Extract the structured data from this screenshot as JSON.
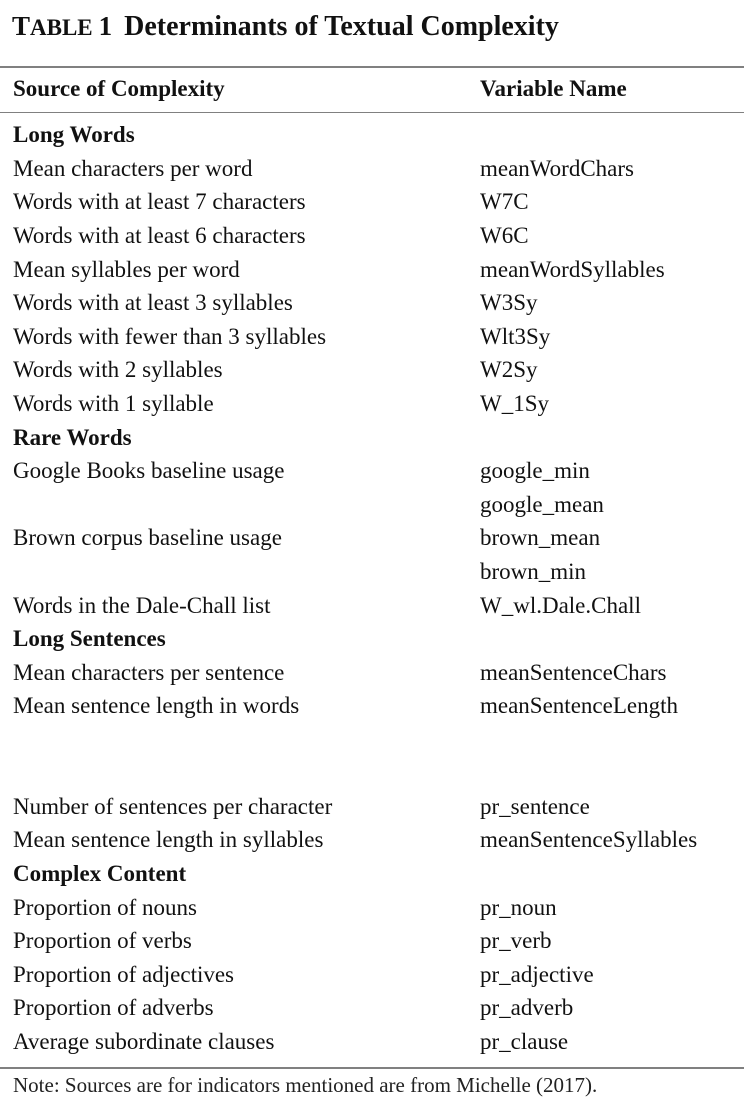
{
  "table": {
    "label_first_letter": "T",
    "label_rest": "ABLE",
    "number": "1",
    "title": "Determinants of Textual Complexity",
    "headers": [
      "Source of Complexity",
      "Variable Name"
    ],
    "rows": [
      {
        "type": "section",
        "source": "Long Words",
        "variable": ""
      },
      {
        "type": "data",
        "source": "Mean characters per word",
        "variable": "meanWordChars"
      },
      {
        "type": "data",
        "source": "Words with at least 7 characters",
        "variable": "W7C"
      },
      {
        "type": "data",
        "source": "Words with at least 6 characters",
        "variable": "W6C"
      },
      {
        "type": "data",
        "source": "Mean syllables per word",
        "variable": "meanWordSyllables"
      },
      {
        "type": "data",
        "source": "Words with at least 3 syllables",
        "variable": "W3Sy"
      },
      {
        "type": "data",
        "source": "Words with fewer than 3 syllables",
        "variable": "Wlt3Sy"
      },
      {
        "type": "data",
        "source": "Words with 2 syllables",
        "variable": "W2Sy"
      },
      {
        "type": "data",
        "source": "Words with 1 syllable",
        "variable": "W_1Sy"
      },
      {
        "type": "section",
        "source": "Rare Words",
        "variable": ""
      },
      {
        "type": "data",
        "source": "Google Books baseline usage",
        "variable": "google_min"
      },
      {
        "type": "data",
        "source": "",
        "variable": "google_mean"
      },
      {
        "type": "data",
        "source": "Brown corpus baseline usage",
        "variable": "brown_mean"
      },
      {
        "type": "data",
        "source": "",
        "variable": "brown_min"
      },
      {
        "type": "data",
        "source": "Words in the Dale-Chall list",
        "variable": "W_wl.Dale.Chall"
      },
      {
        "type": "section",
        "source": "Long Sentences",
        "variable": ""
      },
      {
        "type": "data",
        "source": "Mean characters per sentence",
        "variable": "meanSentenceChars"
      },
      {
        "type": "data",
        "source": "Mean sentence length in words",
        "variable": "meanSentenceLength"
      },
      {
        "type": "data",
        "source": "Number of sentences per character",
        "variable": "pr_sentence"
      },
      {
        "type": "data",
        "source": "Mean sentence length in syllables",
        "variable": "meanSentenceSyllables"
      },
      {
        "type": "section",
        "source": "Complex Content",
        "variable": ""
      },
      {
        "type": "data",
        "source": "Proportion of nouns",
        "variable": "pr_noun"
      },
      {
        "type": "data",
        "source": "Proportion of verbs",
        "variable": "pr_verb"
      },
      {
        "type": "data",
        "source": "Proportion of adjectives",
        "variable": "pr_adjective"
      },
      {
        "type": "data",
        "source": "Proportion of adverbs",
        "variable": "pr_adverb"
      },
      {
        "type": "data",
        "source": "Average subordinate clauses",
        "variable": "pr_clause"
      }
    ],
    "note": "Note: Sources are for indicators mentioned are from Michelle (2017)."
  }
}
